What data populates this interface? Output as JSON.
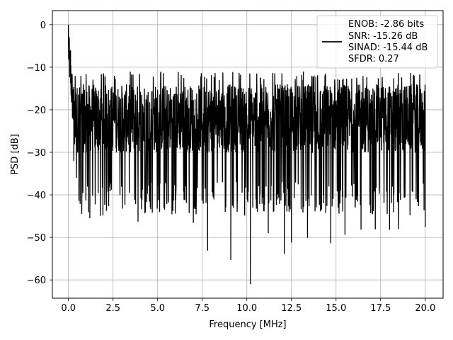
{
  "chart_data": {
    "type": "line",
    "xlabel": "Frequency [MHz]",
    "ylabel": "PSD [dB]",
    "xlim": [
      -0.9,
      21.0
    ],
    "ylim": [
      -64.3,
      3.3
    ],
    "x_ticks": [
      0.0,
      2.5,
      5.0,
      7.5,
      10.0,
      12.5,
      15.0,
      17.5,
      20.0
    ],
    "x_tick_labels": [
      "0.0",
      "2.5",
      "5.0",
      "7.5",
      "10.0",
      "12.5",
      "15.0",
      "17.5",
      "20.0"
    ],
    "y_ticks": [
      0,
      -10,
      -20,
      -30,
      -40,
      -50,
      -60
    ],
    "y_tick_labels": [
      "0",
      "−10",
      "−20",
      "−30",
      "−40",
      "−50",
      "−60"
    ],
    "grid": true,
    "line_color": "#000000",
    "legend": {
      "placement": "top-right",
      "entries": [
        "ENOB: -2.86 bits",
        "SNR: -15.26 dB",
        "SINAD: -15.44 dB",
        "SFDR: 0.27"
      ]
    },
    "series": [
      {
        "noise_band_db": [
          -33,
          -14
        ],
        "x_range": [
          0.0,
          20.0
        ],
        "points": [
          [
            0.0,
            0.0
          ],
          [
            0.02,
            -8
          ],
          [
            0.05,
            -3
          ],
          [
            0.08,
            -12
          ],
          [
            0.12,
            -6
          ],
          [
            0.18,
            -15
          ],
          [
            0.25,
            -22
          ],
          [
            0.3,
            -32
          ],
          [
            0.45,
            -36
          ],
          [
            1.2,
            -45.5
          ],
          [
            3.9,
            -46.3
          ],
          [
            4.7,
            -44.2
          ],
          [
            5.8,
            -44.6
          ],
          [
            7.0,
            -46.6
          ],
          [
            7.8,
            -53.1
          ],
          [
            9.1,
            -55.3
          ],
          [
            10.2,
            -61.0
          ],
          [
            11.2,
            -49
          ],
          [
            12.1,
            -53.9
          ],
          [
            12.5,
            -51.2
          ],
          [
            13.4,
            -50.1
          ],
          [
            14.7,
            -51.4
          ],
          [
            15.5,
            -49.4
          ],
          [
            16.4,
            -48.2
          ],
          [
            17.2,
            -48.1
          ],
          [
            18.0,
            -48.2
          ],
          [
            18.5,
            -48.0
          ],
          [
            20.0,
            -47.6
          ]
        ]
      }
    ]
  }
}
